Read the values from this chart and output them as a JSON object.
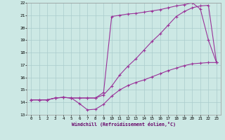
{
  "xlabel": "Windchill (Refroidissement éolien,°C)",
  "bg_color": "#cce8e4",
  "grid_color": "#aacccc",
  "line_color": "#993399",
  "xlim": [
    -0.5,
    23.5
  ],
  "ylim": [
    13,
    22
  ],
  "xticks": [
    0,
    1,
    2,
    3,
    4,
    5,
    6,
    7,
    8,
    9,
    10,
    11,
    12,
    13,
    14,
    15,
    16,
    17,
    18,
    19,
    20,
    21,
    22,
    23
  ],
  "yticks": [
    13,
    14,
    15,
    16,
    17,
    18,
    19,
    20,
    21,
    22
  ],
  "line1_x": [
    0,
    1,
    2,
    3,
    4,
    5,
    6,
    7,
    8,
    9,
    10,
    11,
    12,
    13,
    14,
    15,
    16,
    17,
    18,
    19,
    20,
    21,
    22,
    23
  ],
  "line1_y": [
    14.2,
    14.2,
    14.2,
    14.35,
    14.4,
    14.35,
    13.9,
    13.4,
    13.45,
    13.85,
    14.5,
    15.0,
    15.35,
    15.6,
    15.8,
    16.05,
    16.3,
    16.55,
    16.75,
    16.95,
    17.1,
    17.15,
    17.2,
    17.2
  ],
  "line2_x": [
    0,
    1,
    2,
    3,
    4,
    5,
    6,
    7,
    8,
    9,
    10,
    11,
    12,
    13,
    14,
    15,
    16,
    17,
    18,
    19,
    20,
    21,
    22,
    23
  ],
  "line2_y": [
    14.2,
    14.2,
    14.2,
    14.35,
    14.4,
    14.35,
    14.35,
    14.35,
    14.35,
    14.6,
    15.3,
    16.2,
    16.9,
    17.5,
    18.2,
    18.9,
    19.5,
    20.2,
    20.9,
    21.3,
    21.6,
    21.75,
    21.8,
    17.2
  ],
  "line3_x": [
    0,
    1,
    2,
    3,
    4,
    5,
    6,
    7,
    8,
    9,
    10,
    11,
    12,
    13,
    14,
    15,
    16,
    17,
    18,
    19,
    20,
    21,
    22,
    23
  ],
  "line3_y": [
    14.2,
    14.2,
    14.2,
    14.35,
    14.4,
    14.35,
    14.35,
    14.35,
    14.35,
    14.8,
    20.9,
    21.0,
    21.1,
    21.15,
    21.25,
    21.35,
    21.45,
    21.6,
    21.75,
    21.85,
    22.0,
    21.5,
    19.0,
    17.2
  ]
}
